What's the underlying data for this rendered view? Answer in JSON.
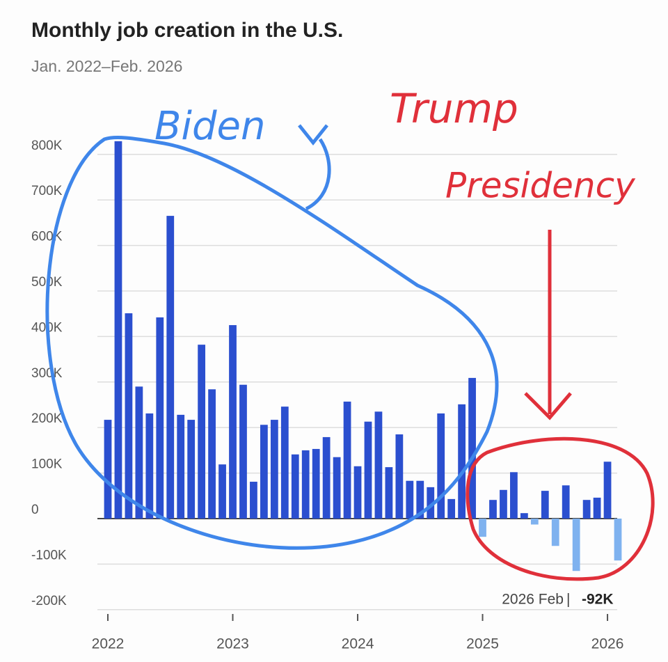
{
  "chart_data": {
    "type": "bar",
    "title": "Monthly job creation in the U.S.",
    "subtitle": "Jan. 2022–Feb. 2026",
    "categories": [
      "2022",
      null,
      null,
      null,
      null,
      null,
      null,
      null,
      null,
      null,
      null,
      null,
      "2023",
      null,
      null,
      null,
      null,
      null,
      null,
      null,
      null,
      null,
      null,
      null,
      "2024",
      null,
      null,
      null,
      null,
      null,
      null,
      null,
      null,
      null,
      null,
      null,
      "2025",
      null,
      null,
      null,
      null,
      null,
      null,
      null,
      null,
      null,
      null,
      null,
      "2026",
      null
    ],
    "values": [
      217,
      829,
      451,
      290,
      231,
      442,
      665,
      228,
      217,
      382,
      284,
      119,
      425,
      294,
      81,
      206,
      217,
      246,
      141,
      150,
      153,
      179,
      135,
      257,
      115,
      213,
      235,
      113,
      185,
      83,
      83,
      69,
      231,
      43,
      251,
      309,
      -40,
      41,
      63,
      102,
      12,
      -13,
      61,
      -60,
      73,
      -115,
      41,
      46,
      125,
      -92
    ],
    "color": "#2b4fcf",
    "negative_color": "#7fb2ef",
    "ylim": [
      -230,
      830
    ],
    "yticks": [
      {
        "value": -200,
        "label": "-200K"
      },
      {
        "value": -100,
        "label": "-100K"
      },
      0,
      {
        "value": 100,
        "label": "100K"
      },
      {
        "value": 200,
        "label": "200K"
      },
      {
        "value": 300,
        "label": "300K"
      },
      {
        "value": 400,
        "label": "400K"
      },
      {
        "value": 500,
        "label": "500K"
      },
      {
        "value": 600,
        "label": "600K"
      },
      {
        "value": 700,
        "label": "700K"
      },
      {
        "value": 800,
        "label": "800K"
      }
    ],
    "grid": true,
    "callout": {
      "label": "2026 Feb",
      "value_label": "-92K"
    },
    "annotations": [
      "Biden",
      "Trump",
      "Presidency"
    ]
  }
}
